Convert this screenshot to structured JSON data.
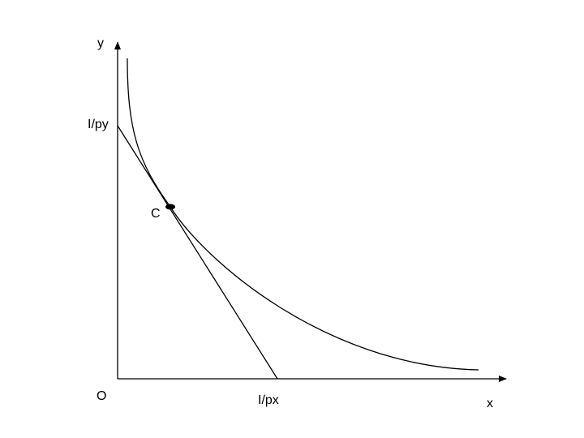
{
  "labels": {
    "y_axis": "y",
    "y_intercept": "I/py",
    "point": "C",
    "origin": "O",
    "x_intercept": "I/px",
    "x_axis": "x"
  }
}
